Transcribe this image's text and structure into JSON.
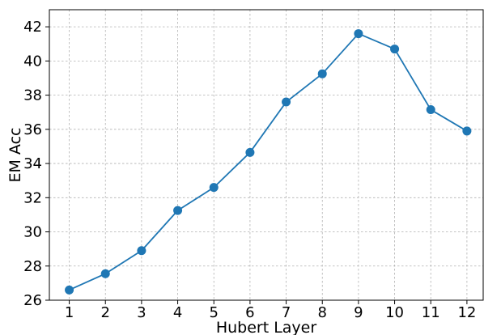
{
  "chart_data": {
    "type": "line",
    "title": "",
    "xlabel": "Hubert Layer",
    "ylabel": "EM Acc",
    "x": [
      1,
      2,
      3,
      4,
      5,
      6,
      7,
      8,
      9,
      10,
      11,
      12
    ],
    "series": [
      {
        "values": [
          26.6,
          27.55,
          28.9,
          31.25,
          32.6,
          34.65,
          37.6,
          39.25,
          41.6,
          40.7,
          37.15,
          35.9
        ],
        "color": "#1f77b4"
      }
    ],
    "xticks": [
      "1",
      "2",
      "3",
      "4",
      "5",
      "6",
      "7",
      "8",
      "9",
      "10",
      "11",
      "12"
    ],
    "yticks": [
      "26",
      "28",
      "30",
      "32",
      "34",
      "36",
      "38",
      "40",
      "42"
    ],
    "xlim": [
      0.45,
      12.45
    ],
    "ylim": [
      26,
      43
    ],
    "grid": true,
    "legend": "none"
  }
}
